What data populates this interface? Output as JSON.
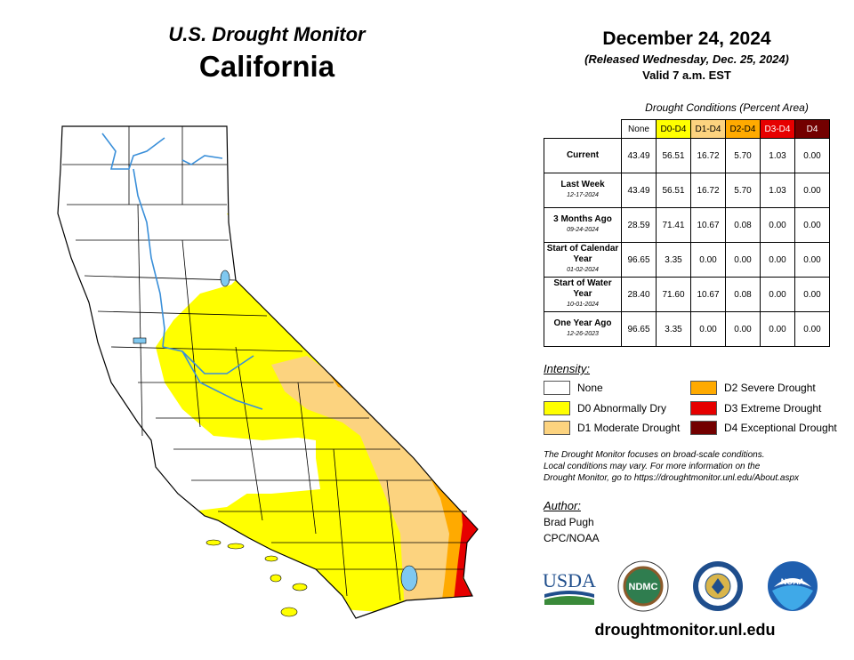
{
  "header": {
    "title": "U.S. Drought Monitor",
    "state": "California",
    "date": "December 24, 2024",
    "released": "(Released Wednesday, Dec. 25, 2024)",
    "valid": "Valid 7 a.m. EST"
  },
  "table": {
    "title": "Drought Conditions (Percent Area)",
    "columns": [
      {
        "label": "None",
        "color": "#ffffff",
        "text_color": "#000000"
      },
      {
        "label": "D0-D4",
        "color": "#ffff00",
        "text_color": "#000000"
      },
      {
        "label": "D1-D4",
        "color": "#fcd37f",
        "text_color": "#000000"
      },
      {
        "label": "D2-D4",
        "color": "#ffaa00",
        "text_color": "#000000"
      },
      {
        "label": "D3-D4",
        "color": "#e60000",
        "text_color": "#ffffff"
      },
      {
        "label": "D4",
        "color": "#730000",
        "text_color": "#ffffff"
      }
    ],
    "rows": [
      {
        "name": "Current",
        "date": "",
        "values": [
          "43.49",
          "56.51",
          "16.72",
          "5.70",
          "1.03",
          "0.00"
        ]
      },
      {
        "name": "Last Week",
        "date": "12-17-2024",
        "values": [
          "43.49",
          "56.51",
          "16.72",
          "5.70",
          "1.03",
          "0.00"
        ]
      },
      {
        "name": "3 Months Ago",
        "date": "09-24-2024",
        "values": [
          "28.59",
          "71.41",
          "10.67",
          "0.08",
          "0.00",
          "0.00"
        ]
      },
      {
        "name": "Start of Calendar Year",
        "date": "01-02-2024",
        "values": [
          "96.65",
          "3.35",
          "0.00",
          "0.00",
          "0.00",
          "0.00"
        ]
      },
      {
        "name": "Start of Water Year",
        "date": "10-01-2024",
        "values": [
          "28.40",
          "71.60",
          "10.67",
          "0.08",
          "0.00",
          "0.00"
        ]
      },
      {
        "name": "One Year Ago",
        "date": "12-26-2023",
        "values": [
          "96.65",
          "3.35",
          "0.00",
          "0.00",
          "0.00",
          "0.00"
        ]
      }
    ]
  },
  "legend": {
    "title": "Intensity:",
    "items": [
      {
        "label": "None",
        "color": "#ffffff"
      },
      {
        "label": "D0 Abnormally Dry",
        "color": "#ffff00"
      },
      {
        "label": "D1 Moderate Drought",
        "color": "#fcd37f"
      },
      {
        "label": "D2 Severe Drought",
        "color": "#ffaa00"
      },
      {
        "label": "D3 Extreme Drought",
        "color": "#e60000"
      },
      {
        "label": "D4 Exceptional Drought",
        "color": "#730000"
      }
    ]
  },
  "note": {
    "line1": "The Drought Monitor focuses on broad-scale conditions.",
    "line2": "Local conditions may vary. For more information on the",
    "line3": "Drought Monitor, go to https://droughtmonitor.unl.edu/About.aspx"
  },
  "author": {
    "title": "Author:",
    "name": "Brad Pugh",
    "org": "CPC/NOAA"
  },
  "logos": {
    "usda": "USDA",
    "ndmc": "NDMC",
    "noaa": "NOAA",
    "usda_icon": "usda-logo-icon",
    "ndmc_icon": "ndmc-seal-icon",
    "doc_icon": "commerce-seal-icon",
    "noaa_icon": "noaa-logo-icon"
  },
  "footer": {
    "site": "droughtmonitor.unl.edu"
  },
  "map": {
    "region": "California",
    "water_color": "#7fc8f0",
    "river_color": "#3a8fd9"
  }
}
